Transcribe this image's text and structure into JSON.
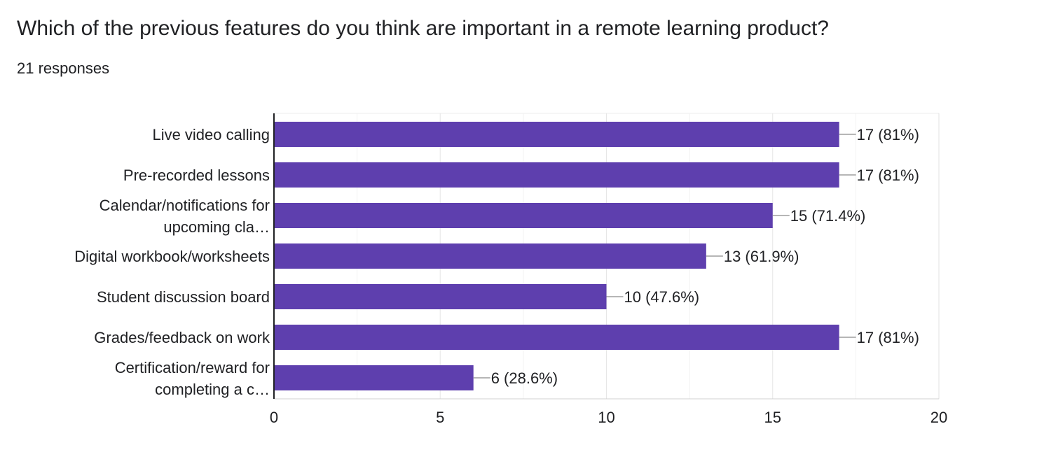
{
  "question": {
    "title": "Which of the previous features do you think are important in a remote learning product?",
    "responses": "21 responses"
  },
  "chart_data": {
    "type": "bar",
    "orientation": "horizontal",
    "categories": [
      [
        "Live video calling"
      ],
      [
        "Pre-recorded lessons"
      ],
      [
        "Calendar/notifications for",
        "upcoming cla…"
      ],
      [
        "Digital workbook/worksheets"
      ],
      [
        "Student discussion board"
      ],
      [
        "Grades/feedback on work"
      ],
      [
        "Certification/reward for",
        "completing a c…"
      ]
    ],
    "values": [
      17,
      17,
      15,
      13,
      10,
      17,
      6
    ],
    "data_labels": [
      "17 (81%)",
      "17 (81%)",
      "15 (71.4%)",
      "13 (61.9%)",
      "10 (47.6%)",
      "17 (81%)",
      "6 (28.6%)"
    ],
    "xlim": [
      0,
      20
    ],
    "xticks": [
      0,
      5,
      10,
      15,
      20
    ],
    "grid": true,
    "bar_color": "#5e3fae"
  }
}
